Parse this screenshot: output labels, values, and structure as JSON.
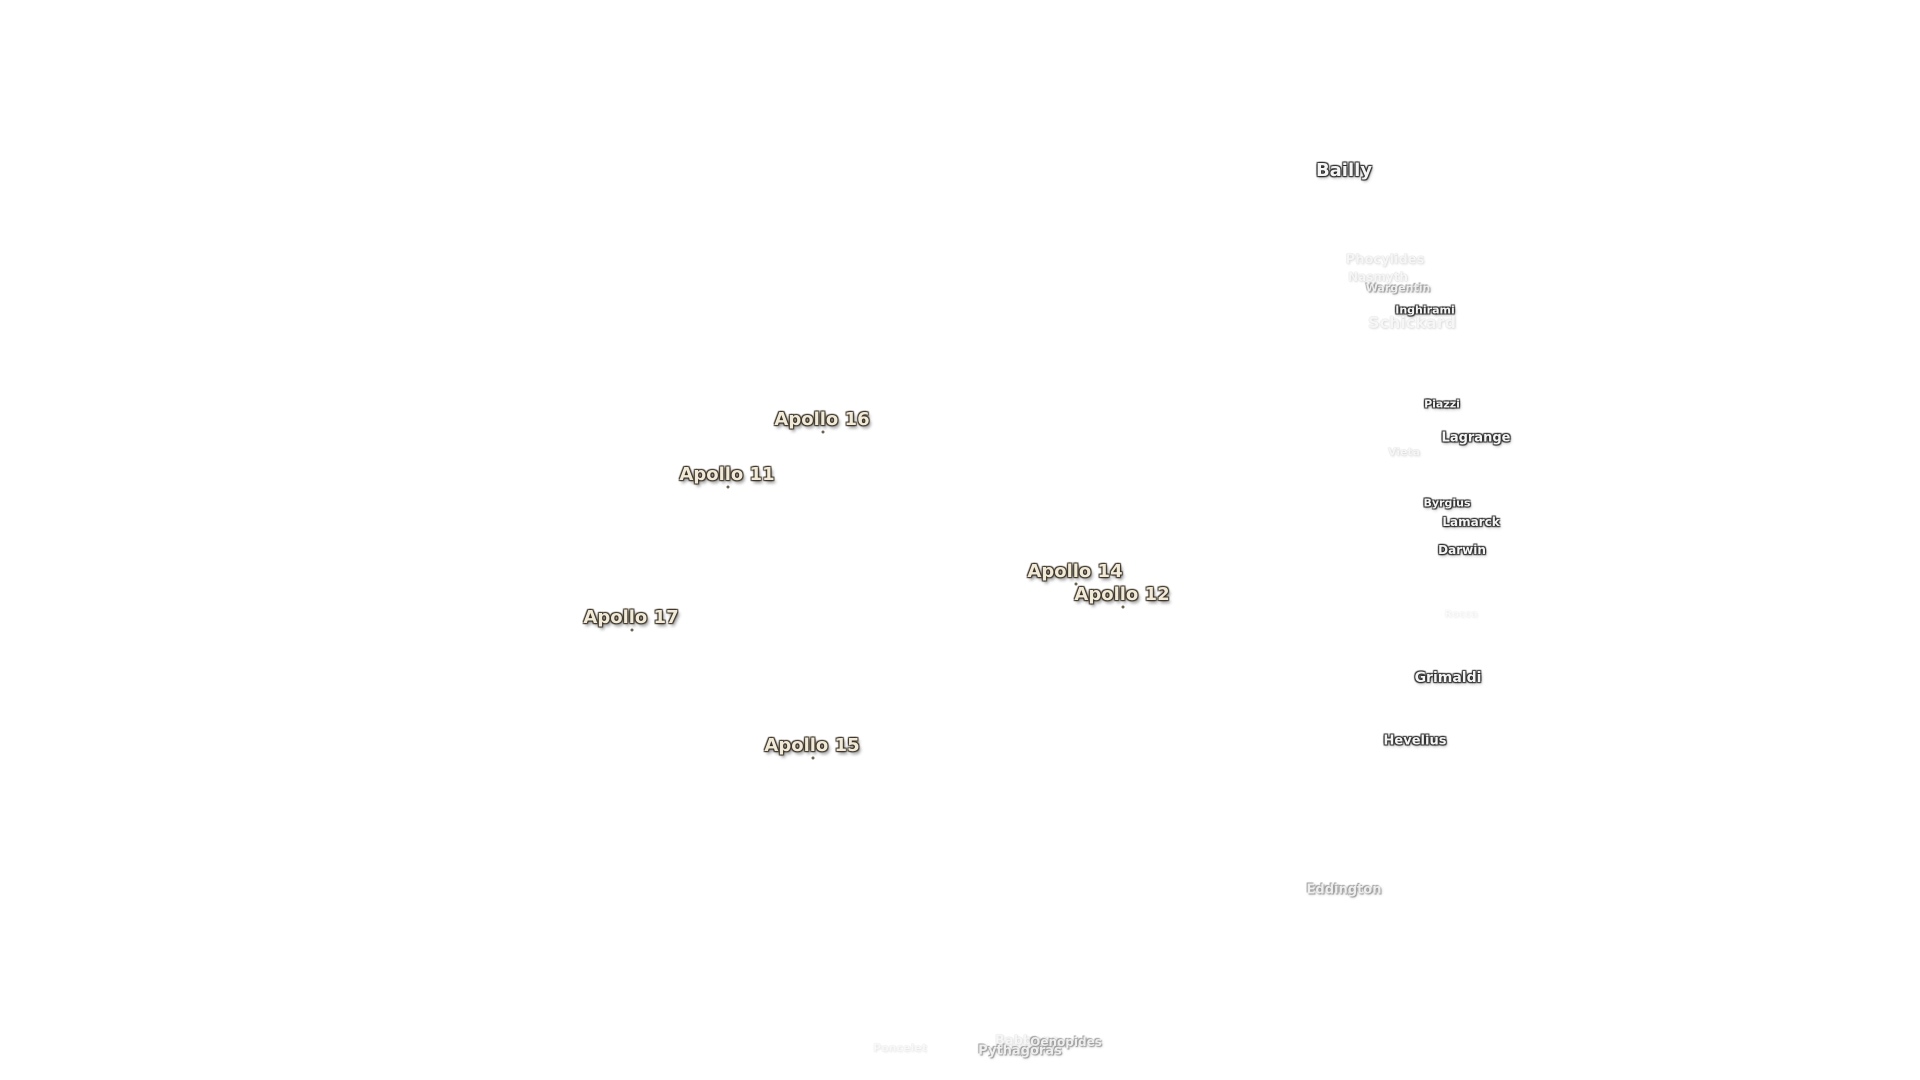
{
  "apollo_sites": [
    {
      "label": "Apollo 16",
      "name": "apollo-16"
    },
    {
      "label": "Apollo 11",
      "name": "apollo-11"
    },
    {
      "label": "Apollo 14",
      "name": "apollo-14"
    },
    {
      "label": "Apollo 12",
      "name": "apollo-12"
    },
    {
      "label": "Apollo 17",
      "name": "apollo-17"
    },
    {
      "label": "Apollo 15",
      "name": "apollo-15"
    }
  ],
  "craters": [
    {
      "label": "Bailly",
      "name": "bailly"
    },
    {
      "label": "Phocylides",
      "name": "phocylides"
    },
    {
      "label": "Nasmyth",
      "name": "nasmyth"
    },
    {
      "label": "Wargentin",
      "name": "wargentin"
    },
    {
      "label": "Inghirami",
      "name": "inghirami"
    },
    {
      "label": "Schickard",
      "name": "schickard"
    },
    {
      "label": "Piazzi",
      "name": "piazzi"
    },
    {
      "label": "Lagrange",
      "name": "lagrange"
    },
    {
      "label": "Vieta",
      "name": "vieta"
    },
    {
      "label": "Byrgius",
      "name": "byrgius"
    },
    {
      "label": "Lamarck",
      "name": "lamarck"
    },
    {
      "label": "Darwin",
      "name": "darwin"
    },
    {
      "label": "Rocca",
      "name": "rocca"
    },
    {
      "label": "Grimaldi",
      "name": "grimaldi"
    },
    {
      "label": "Hevelius",
      "name": "hevelius"
    },
    {
      "label": "Eddington",
      "name": "eddington"
    },
    {
      "label": "Poncelet",
      "name": "poncelet"
    },
    {
      "label": "Babbage",
      "name": "babbage"
    },
    {
      "label": "Oenopides",
      "name": "oenopides"
    },
    {
      "label": "Pythagoras",
      "name": "pythagoras"
    }
  ]
}
